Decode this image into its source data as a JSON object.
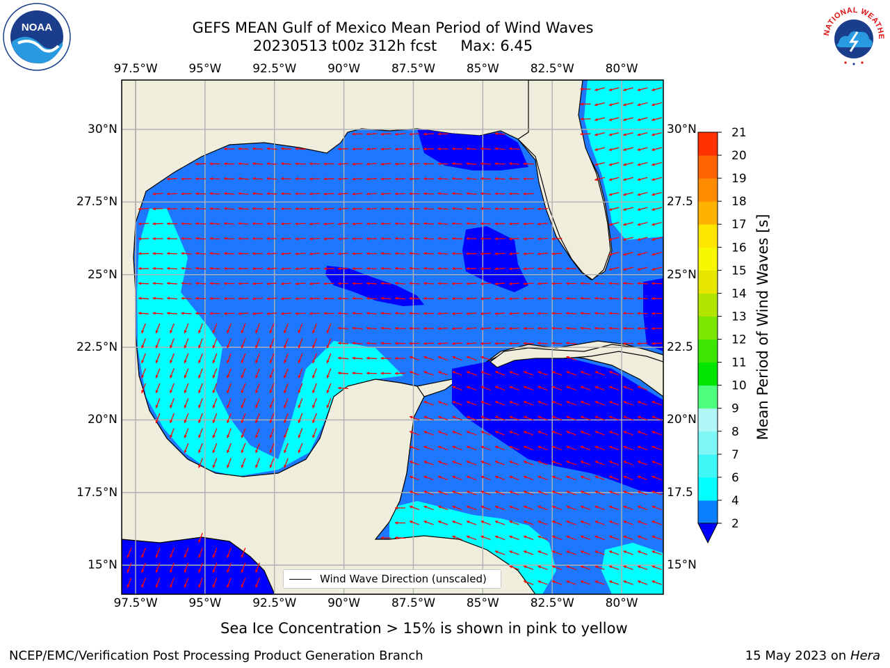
{
  "title": {
    "line1": "GEFS MEAN Gulf of Mexico Mean Period of Wind Waves",
    "line2": "20230513 t00z 312h fcst",
    "max": "Max: 6.45"
  },
  "axes": {
    "lon_labels": [
      "97.5°W",
      "95°W",
      "92.5°W",
      "90°W",
      "87.5°W",
      "85°W",
      "82.5°W",
      "80°W"
    ],
    "lat_labels_left": [
      "30°N",
      "27.5°N",
      "25°N",
      "22.5°N",
      "20°N",
      "17.5°N",
      "15°N"
    ],
    "lat_labels_right": [
      "30°N",
      "27.5",
      "25°N",
      "22.5",
      "20°N",
      "17.5",
      "15°N"
    ],
    "lon_range": [
      -98.0,
      -78.5
    ],
    "lat_range": [
      14.0,
      31.7
    ]
  },
  "colorbar": {
    "title": "Mean Period of Wind Waves [s]",
    "ticks": [
      "2",
      "4",
      "6",
      "7",
      "8",
      "9",
      "10",
      "11",
      "12",
      "13",
      "14",
      "15",
      "16",
      "17",
      "18",
      "19",
      "20",
      "21"
    ],
    "colors": [
      "#0a80ff",
      "#00ffff",
      "#3ff7f7",
      "#7ff7f7",
      "#b2f7f7",
      "#4fff7f",
      "#00e600",
      "#3ce600",
      "#7ce600",
      "#b2e600",
      "#e6e600",
      "#f7f700",
      "#ffe600",
      "#ffb200",
      "#ff8c00",
      "#ff6200",
      "#ff3100",
      "#ff0000"
    ],
    "under_color": "#0000ff"
  },
  "map": {
    "land_color": "#efeddc",
    "ocean_colors": {
      "dark": "#0000ff",
      "mid": "#1e78ff",
      "light": "#00ffff"
    },
    "arrow_color": "#ff0000"
  },
  "legend": {
    "label": "Wind Wave Direction (unscaled)"
  },
  "note": "Sea Ice Concentration > 15% is shown in pink to yellow",
  "footer": {
    "left": "NCEP/EMC/Verification Post Processing Product Generation Branch",
    "right_prefix": "15 May 2023 on",
    "right_host": "Hera"
  },
  "logos": {
    "left_text": "NOAA",
    "right_text": "NATIONAL WEATHER SERVICE"
  }
}
